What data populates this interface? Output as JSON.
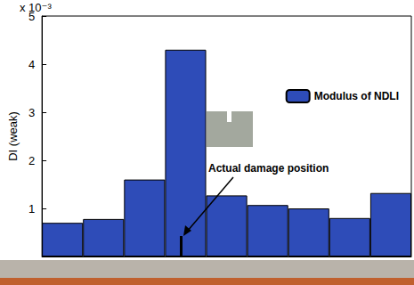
{
  "chart_data": {
    "type": "bar",
    "y_label": "DI (weak)",
    "y_multiplier": "x 10⁻³",
    "categories": [
      null,
      null,
      null,
      null,
      null,
      null,
      null,
      null,
      null
    ],
    "series": [
      {
        "name": "Modulus of NDLI",
        "color": "#2e4cb8",
        "values": [
          0.0007,
          0.00078,
          0.0016,
          0.0043,
          0.00127,
          0.00107,
          0.001,
          0.0008,
          0.00132
        ]
      }
    ],
    "ylim": [
      0,
      0.005
    ],
    "yticks": [
      {
        "value": 0.001,
        "label": "1"
      },
      {
        "value": 0.002,
        "label": "2"
      },
      {
        "value": 0.003,
        "label": "3"
      },
      {
        "value": 0.004,
        "label": "4"
      },
      {
        "value": 0.005,
        "label": "5"
      }
    ],
    "annotations": [
      "Actual damage position"
    ],
    "legend": "upper right",
    "tick_labels": "y",
    "grid": false
  }
}
